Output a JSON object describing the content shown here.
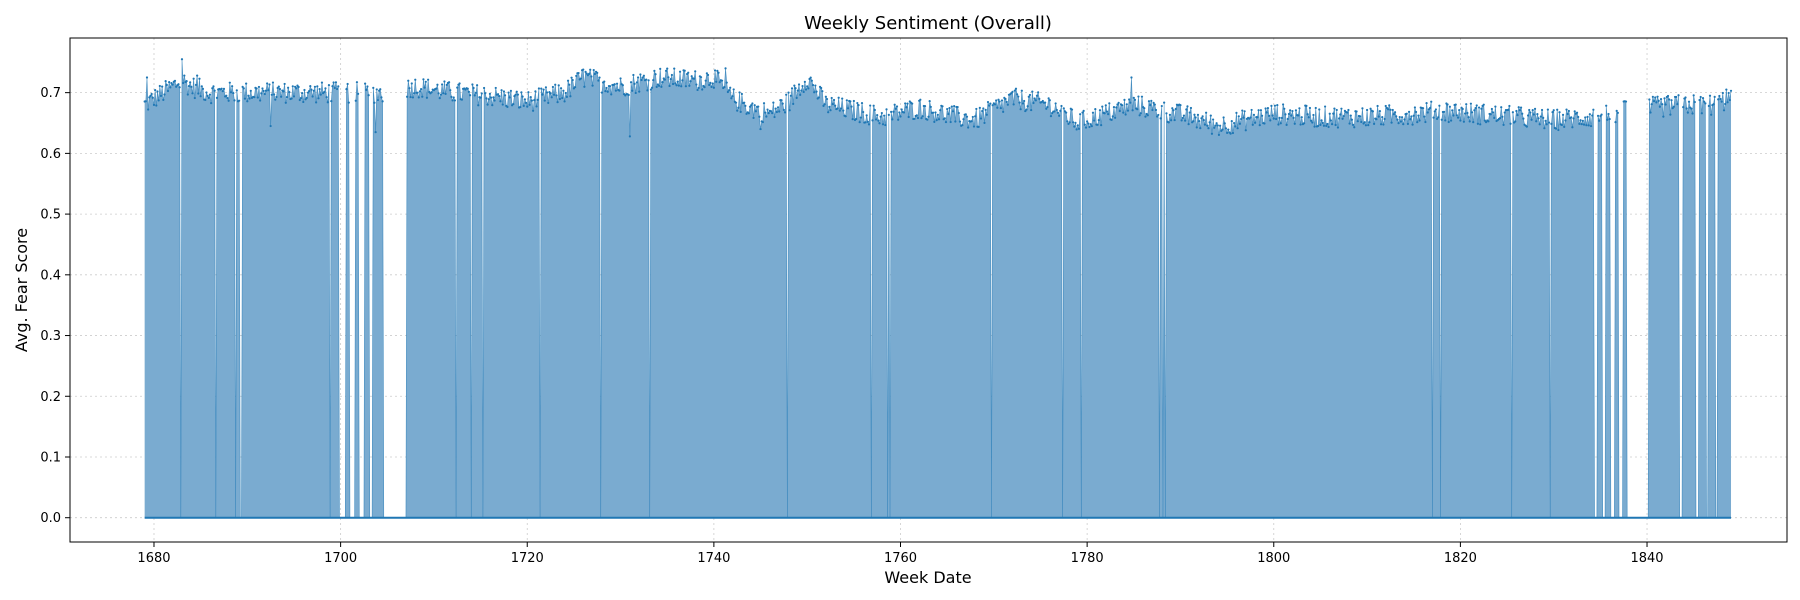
{
  "chart_data": {
    "type": "area",
    "title": "Weekly Sentiment (Overall)",
    "xlabel": "Week Date",
    "ylabel": "Avg. Fear Score",
    "xlim": [
      1671,
      1855
    ],
    "ylim": [
      -0.04,
      0.79
    ],
    "x_ticks": [
      1680,
      1700,
      1720,
      1740,
      1760,
      1780,
      1800,
      1820,
      1840
    ],
    "y_ticks": [
      0.0,
      0.1,
      0.2,
      0.3,
      0.4,
      0.5,
      0.6,
      0.7
    ],
    "x_tick_labels": [
      "1680",
      "1700",
      "1720",
      "1740",
      "1760",
      "1780",
      "1800",
      "1820",
      "1840"
    ],
    "y_tick_labels": [
      "0.0",
      "0.1",
      "0.2",
      "0.3",
      "0.4",
      "0.5",
      "0.6",
      "0.7"
    ],
    "grid": true,
    "data_range": [
      1679,
      1849
    ],
    "series": [
      {
        "color": "#1f77b4",
        "fill_color": "#7aabd0",
        "profile_x": [
          1679,
          1681,
          1683,
          1684,
          1686,
          1690,
          1695,
          1700,
          1705,
          1708,
          1712,
          1716,
          1720,
          1724,
          1726,
          1730,
          1734,
          1738,
          1740,
          1742,
          1744,
          1746,
          1748,
          1750,
          1752,
          1755,
          1758,
          1762,
          1766,
          1768,
          1772,
          1776,
          1779,
          1781,
          1785,
          1788,
          1791,
          1794,
          1797,
          1800,
          1805,
          1810,
          1815,
          1818,
          1822,
          1826,
          1830,
          1834,
          1838,
          1840,
          1844,
          1847,
          1849
        ],
        "profile_y": [
          0.68,
          0.7,
          0.72,
          0.71,
          0.7,
          0.7,
          0.7,
          0.7,
          0.7,
          0.71,
          0.7,
          0.695,
          0.685,
          0.7,
          0.725,
          0.71,
          0.725,
          0.72,
          0.725,
          0.69,
          0.675,
          0.665,
          0.685,
          0.725,
          0.68,
          0.67,
          0.66,
          0.675,
          0.66,
          0.655,
          0.69,
          0.68,
          0.65,
          0.66,
          0.68,
          0.67,
          0.66,
          0.645,
          0.655,
          0.665,
          0.66,
          0.66,
          0.665,
          0.67,
          0.665,
          0.66,
          0.655,
          0.66,
          0.67,
          0.675,
          0.68,
          0.68,
          0.69
        ],
        "gaps": [
          [
            1689.2,
            1689.4
          ],
          [
            1699.8,
            1700.6
          ],
          [
            1701.0,
            1701.5
          ],
          [
            1702.0,
            1702.5
          ],
          [
            1703.1,
            1703.4
          ],
          [
            1704.6,
            1707.0
          ],
          [
            1713.9,
            1714.1
          ],
          [
            1834.3,
            1834.7
          ],
          [
            1835.2,
            1835.6
          ],
          [
            1836.1,
            1836.5
          ],
          [
            1837.0,
            1837.4
          ],
          [
            1837.9,
            1840.2
          ],
          [
            1843.5,
            1843.8
          ],
          [
            1845.2,
            1845.5
          ],
          [
            1846.3,
            1846.6
          ],
          [
            1847.3,
            1847.6
          ]
        ],
        "spikes": [
          [
            1679.3,
            0.725
          ],
          [
            1683.0,
            0.755
          ],
          [
            1684.6,
            0.728
          ],
          [
            1692.5,
            0.645
          ],
          [
            1703.8,
            0.635
          ],
          [
            1731.0,
            0.628
          ],
          [
            1726.0,
            0.738
          ],
          [
            1741.2,
            0.74
          ],
          [
            1745.0,
            0.64
          ],
          [
            1784.7,
            0.725
          ],
          [
            1848.5,
            0.705
          ]
        ]
      }
    ]
  }
}
